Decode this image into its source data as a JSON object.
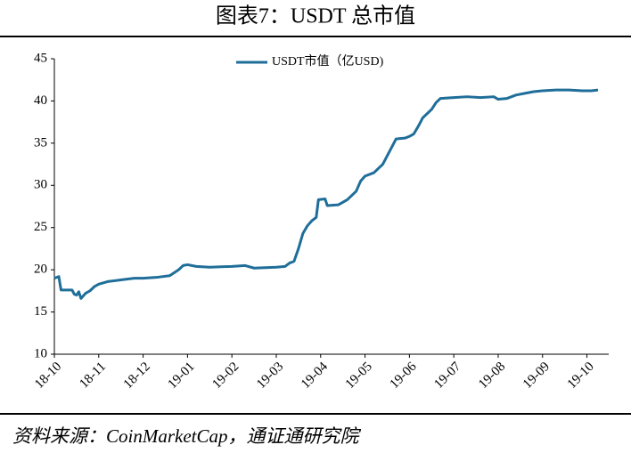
{
  "chart_data": {
    "type": "line",
    "title": "图表7：USDT 总市值",
    "source": "资料来源：CoinMarketCap，通证通研究院",
    "x": [
      0,
      0.1,
      0.15,
      0.4,
      0.45,
      0.5,
      0.55,
      0.6,
      0.7,
      0.8,
      0.9,
      1.0,
      1.2,
      1.5,
      1.8,
      2.0,
      2.3,
      2.6,
      2.8,
      2.9,
      3.0,
      3.2,
      3.5,
      4.0,
      4.3,
      4.5,
      5.0,
      5.2,
      5.3,
      5.4,
      5.5,
      5.6,
      5.7,
      5.8,
      5.9,
      5.95,
      6.1,
      6.15,
      6.4,
      6.6,
      6.8,
      6.9,
      7.0,
      7.2,
      7.4,
      7.5,
      7.6,
      7.7,
      7.9,
      8.0,
      8.1,
      8.2,
      8.3,
      8.5,
      8.6,
      8.7,
      9.0,
      9.3,
      9.6,
      9.9,
      10.0,
      10.2,
      10.4,
      10.6,
      10.8,
      11.0,
      11.3,
      11.6,
      11.9,
      12.1,
      12.25
    ],
    "series": [
      {
        "name": "USDT市值（亿USD)",
        "color": "#1f6e99",
        "values": [
          19.0,
          19.2,
          17.6,
          17.6,
          17.1,
          17.0,
          17.4,
          16.6,
          17.2,
          17.5,
          18.0,
          18.3,
          18.6,
          18.8,
          19.0,
          19.0,
          19.1,
          19.3,
          20.0,
          20.5,
          20.6,
          20.4,
          20.3,
          20.4,
          20.5,
          20.2,
          20.3,
          20.4,
          20.8,
          21.0,
          22.5,
          24.3,
          25.2,
          25.8,
          26.2,
          28.3,
          28.4,
          27.6,
          27.7,
          28.3,
          29.3,
          30.5,
          31.1,
          31.5,
          32.5,
          33.5,
          34.5,
          35.5,
          35.6,
          35.8,
          36.1,
          37.0,
          38.0,
          39.0,
          39.8,
          40.3,
          40.4,
          40.5,
          40.4,
          40.5,
          40.2,
          40.3,
          40.7,
          40.9,
          41.1,
          41.2,
          41.3,
          41.3,
          41.2,
          41.2,
          41.3
        ]
      }
    ],
    "xlim": [
      0,
      12.25
    ],
    "xticks": [
      {
        "value": 0,
        "label": "18-10"
      },
      {
        "value": 1,
        "label": "18-11"
      },
      {
        "value": 2,
        "label": "18-12"
      },
      {
        "value": 3,
        "label": "19-01"
      },
      {
        "value": 4,
        "label": "19-02"
      },
      {
        "value": 5,
        "label": "19-03"
      },
      {
        "value": 6,
        "label": "19-04"
      },
      {
        "value": 7,
        "label": "19-05"
      },
      {
        "value": 8,
        "label": "19-06"
      },
      {
        "value": 9,
        "label": "19-07"
      },
      {
        "value": 10,
        "label": "19-08"
      },
      {
        "value": 11,
        "label": "19-09"
      },
      {
        "value": 12,
        "label": "19-10"
      }
    ],
    "ylim": [
      10,
      45
    ],
    "yticks": [
      10,
      15,
      20,
      25,
      30,
      35,
      40,
      45
    ],
    "legend": "top"
  }
}
